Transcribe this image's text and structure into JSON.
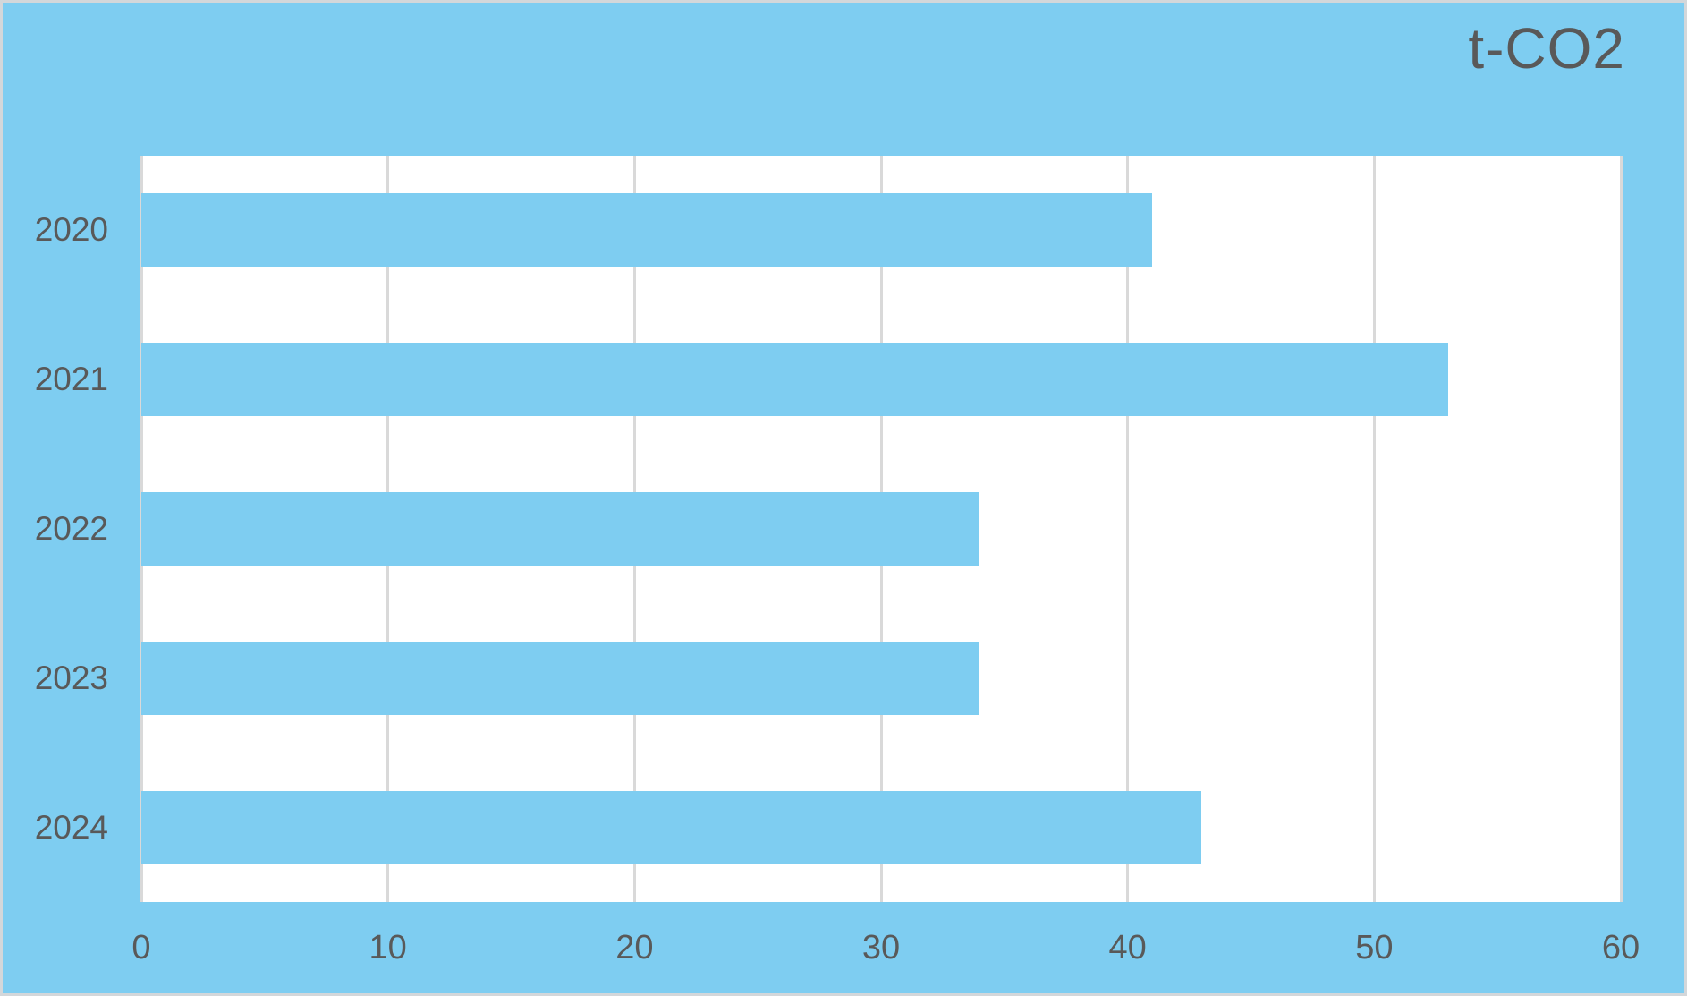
{
  "chart_data": {
    "type": "bar",
    "orientation": "horizontal",
    "title": "t-CO2",
    "categories": [
      "2020",
      "2021",
      "2022",
      "2023",
      "2024"
    ],
    "values": [
      41,
      53,
      34,
      34,
      43
    ],
    "xlabel": "",
    "ylabel": "",
    "xlim": [
      0,
      60
    ],
    "x_ticks": [
      0,
      10,
      20,
      30,
      40,
      50,
      60
    ],
    "grid": "vertical",
    "legend_position": "none"
  },
  "colors": {
    "background": "#7ECDF1",
    "bar": "#7ECDF1",
    "plot_background": "#FFFFFF",
    "gridline": "#D9D9D9",
    "text": "#595959",
    "frame_border": "#D3D7DA"
  }
}
